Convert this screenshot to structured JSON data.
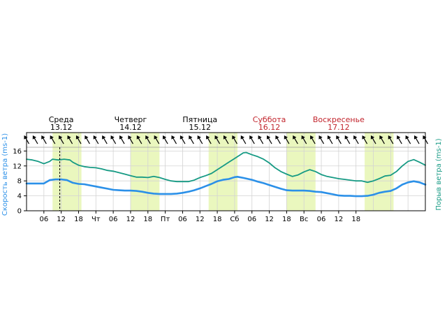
{
  "chart_data": {
    "type": "line",
    "x_unit": "hours",
    "x_range": [
      0,
      138
    ],
    "days": [
      {
        "name": "Среда",
        "date": "13.12",
        "weekend": false
      },
      {
        "name": "Четверг",
        "date": "14.12",
        "weekend": false
      },
      {
        "name": "Пятница",
        "date": "15.12",
        "weekend": false
      },
      {
        "name": "Суббота",
        "date": "16.12",
        "weekend": true
      },
      {
        "name": "Воскресенье",
        "date": "17.12",
        "weekend": true
      }
    ],
    "x_tick_labels": [
      "06",
      "12",
      "18",
      "Чт",
      "06",
      "12",
      "18",
      "Пт",
      "06",
      "12",
      "18",
      "Сб",
      "06",
      "12",
      "18",
      "Вс",
      "06",
      "12",
      "18"
    ],
    "daylight_bands": [
      [
        9,
        19
      ],
      [
        36,
        46
      ],
      [
        63,
        73
      ],
      [
        90,
        100
      ],
      [
        117,
        127
      ]
    ],
    "current_time": 11.5,
    "y_ticks": [
      0,
      4,
      8,
      12,
      16
    ],
    "ylim": [
      0,
      17
    ],
    "ylabel_left": "Скорость ветра (ms-1)",
    "ylabel_right": "Порыв ветра (ms-1)",
    "arrow_row": true,
    "series": [
      {
        "name": "Скорость ветра (ms-1)",
        "color": "#2b90e8",
        "points": [
          [
            0,
            7.3
          ],
          [
            3,
            7.3
          ],
          [
            6,
            7.3
          ],
          [
            8,
            8.2
          ],
          [
            10,
            8.4
          ],
          [
            12,
            8.4
          ],
          [
            14,
            8.2
          ],
          [
            16,
            7.5
          ],
          [
            18,
            7.2
          ],
          [
            20,
            7.1
          ],
          [
            22,
            6.8
          ],
          [
            24,
            6.5
          ],
          [
            26,
            6.2
          ],
          [
            28,
            5.9
          ],
          [
            30,
            5.6
          ],
          [
            32,
            5.5
          ],
          [
            34,
            5.4
          ],
          [
            36,
            5.4
          ],
          [
            38,
            5.3
          ],
          [
            40,
            5.1
          ],
          [
            42,
            4.8
          ],
          [
            44,
            4.6
          ],
          [
            46,
            4.5
          ],
          [
            48,
            4.5
          ],
          [
            50,
            4.5
          ],
          [
            52,
            4.6
          ],
          [
            54,
            4.8
          ],
          [
            56,
            5.1
          ],
          [
            58,
            5.5
          ],
          [
            60,
            6.0
          ],
          [
            62,
            6.6
          ],
          [
            64,
            7.2
          ],
          [
            66,
            7.9
          ],
          [
            68,
            8.3
          ],
          [
            70,
            8.5
          ],
          [
            72,
            9.0
          ],
          [
            73,
            9.1
          ],
          [
            75,
            8.8
          ],
          [
            78,
            8.3
          ],
          [
            80,
            7.8
          ],
          [
            82,
            7.4
          ],
          [
            84,
            6.9
          ],
          [
            86,
            6.4
          ],
          [
            88,
            5.9
          ],
          [
            90,
            5.5
          ],
          [
            92,
            5.4
          ],
          [
            94,
            5.4
          ],
          [
            96,
            5.4
          ],
          [
            98,
            5.3
          ],
          [
            100,
            5.1
          ],
          [
            102,
            5.0
          ],
          [
            104,
            4.7
          ],
          [
            106,
            4.4
          ],
          [
            108,
            4.1
          ],
          [
            110,
            4.0
          ],
          [
            112,
            4.0
          ],
          [
            114,
            3.9
          ],
          [
            116,
            3.9
          ],
          [
            118,
            4.0
          ],
          [
            120,
            4.3
          ],
          [
            122,
            4.8
          ],
          [
            124,
            5.1
          ],
          [
            126,
            5.3
          ],
          [
            128,
            6.0
          ],
          [
            130,
            7.0
          ],
          [
            132,
            7.6
          ],
          [
            134,
            7.9
          ],
          [
            136,
            7.6
          ],
          [
            138,
            7.0
          ]
        ]
      },
      {
        "name": "Порыв ветра (ms-1)",
        "color": "#169a84",
        "points": [
          [
            0,
            13.8
          ],
          [
            2,
            13.6
          ],
          [
            4,
            13.2
          ],
          [
            6,
            12.6
          ],
          [
            8,
            13.2
          ],
          [
            9,
            13.8
          ],
          [
            11,
            13.6
          ],
          [
            13,
            13.8
          ],
          [
            15,
            13.6
          ],
          [
            16,
            13.0
          ],
          [
            18,
            12.2
          ],
          [
            20,
            11.8
          ],
          [
            22,
            11.6
          ],
          [
            24,
            11.5
          ],
          [
            26,
            11.2
          ],
          [
            28,
            10.8
          ],
          [
            30,
            10.6
          ],
          [
            32,
            10.2
          ],
          [
            34,
            9.8
          ],
          [
            36,
            9.4
          ],
          [
            38,
            9.0
          ],
          [
            40,
            9.0
          ],
          [
            42,
            8.9
          ],
          [
            44,
            9.2
          ],
          [
            46,
            8.9
          ],
          [
            48,
            8.4
          ],
          [
            50,
            8.0
          ],
          [
            52,
            7.8
          ],
          [
            54,
            7.8
          ],
          [
            56,
            7.8
          ],
          [
            58,
            8.2
          ],
          [
            60,
            8.9
          ],
          [
            62,
            9.4
          ],
          [
            64,
            10.0
          ],
          [
            66,
            11.0
          ],
          [
            68,
            12.0
          ],
          [
            70,
            13.0
          ],
          [
            72,
            14.0
          ],
          [
            74,
            15.0
          ],
          [
            75,
            15.5
          ],
          [
            76,
            15.6
          ],
          [
            78,
            15.0
          ],
          [
            80,
            14.5
          ],
          [
            82,
            13.8
          ],
          [
            84,
            12.8
          ],
          [
            86,
            11.5
          ],
          [
            88,
            10.5
          ],
          [
            90,
            9.8
          ],
          [
            92,
            9.2
          ],
          [
            94,
            9.6
          ],
          [
            96,
            10.4
          ],
          [
            98,
            11.0
          ],
          [
            100,
            10.5
          ],
          [
            102,
            9.7
          ],
          [
            104,
            9.2
          ],
          [
            106,
            8.9
          ],
          [
            108,
            8.6
          ],
          [
            110,
            8.4
          ],
          [
            112,
            8.2
          ],
          [
            114,
            8.0
          ],
          [
            116,
            8.0
          ],
          [
            118,
            7.6
          ],
          [
            120,
            8.0
          ],
          [
            122,
            8.6
          ],
          [
            124,
            9.3
          ],
          [
            126,
            9.5
          ],
          [
            128,
            10.5
          ],
          [
            130,
            12.0
          ],
          [
            132,
            13.2
          ],
          [
            134,
            13.7
          ],
          [
            136,
            13.0
          ],
          [
            138,
            12.2
          ]
        ]
      }
    ]
  },
  "colors": {
    "weekday_label": "#000000",
    "weekend_label": "#c2242c",
    "daylight_band": "#eaf7be",
    "left_axis_label": "#2b90e8",
    "right_axis_label": "#169a84"
  },
  "wind_direction_arrows": "north-west-arrow-icon"
}
